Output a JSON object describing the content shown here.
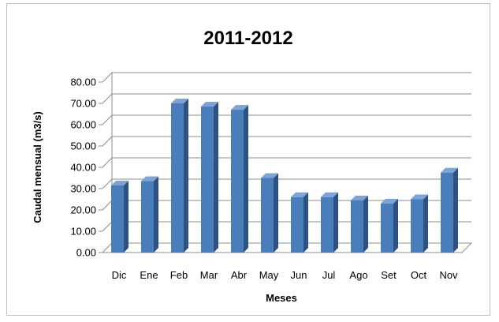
{
  "chart_data": {
    "type": "bar",
    "title": "2011-2012",
    "xlabel": "Meses",
    "ylabel": "Caudal mensual (m3/s)",
    "categories": [
      "Dic",
      "Ene",
      "Feb",
      "Mar",
      "Abr",
      "May",
      "Jun",
      "Jul",
      "Ago",
      "Set",
      "Oct",
      "Nov"
    ],
    "values": [
      31.5,
      33.5,
      70.0,
      68.5,
      67.0,
      35.0,
      26.0,
      26.0,
      24.5,
      23.0,
      25.0,
      37.5
    ],
    "ylim": [
      0,
      80
    ],
    "ytick_labels": [
      "0.00",
      "10.00",
      "20.00",
      "30.00",
      "40.00",
      "50.00",
      "60.00",
      "70.00",
      "80.00"
    ],
    "grid": true,
    "legend": "none",
    "style": "3d-column",
    "colors": {
      "bar_front": "#4a7ebb",
      "bar_side": "#2d5183",
      "bar_top": "#7ea3d6",
      "grid": "#8c8c8c",
      "background": "#ffffff"
    }
  }
}
